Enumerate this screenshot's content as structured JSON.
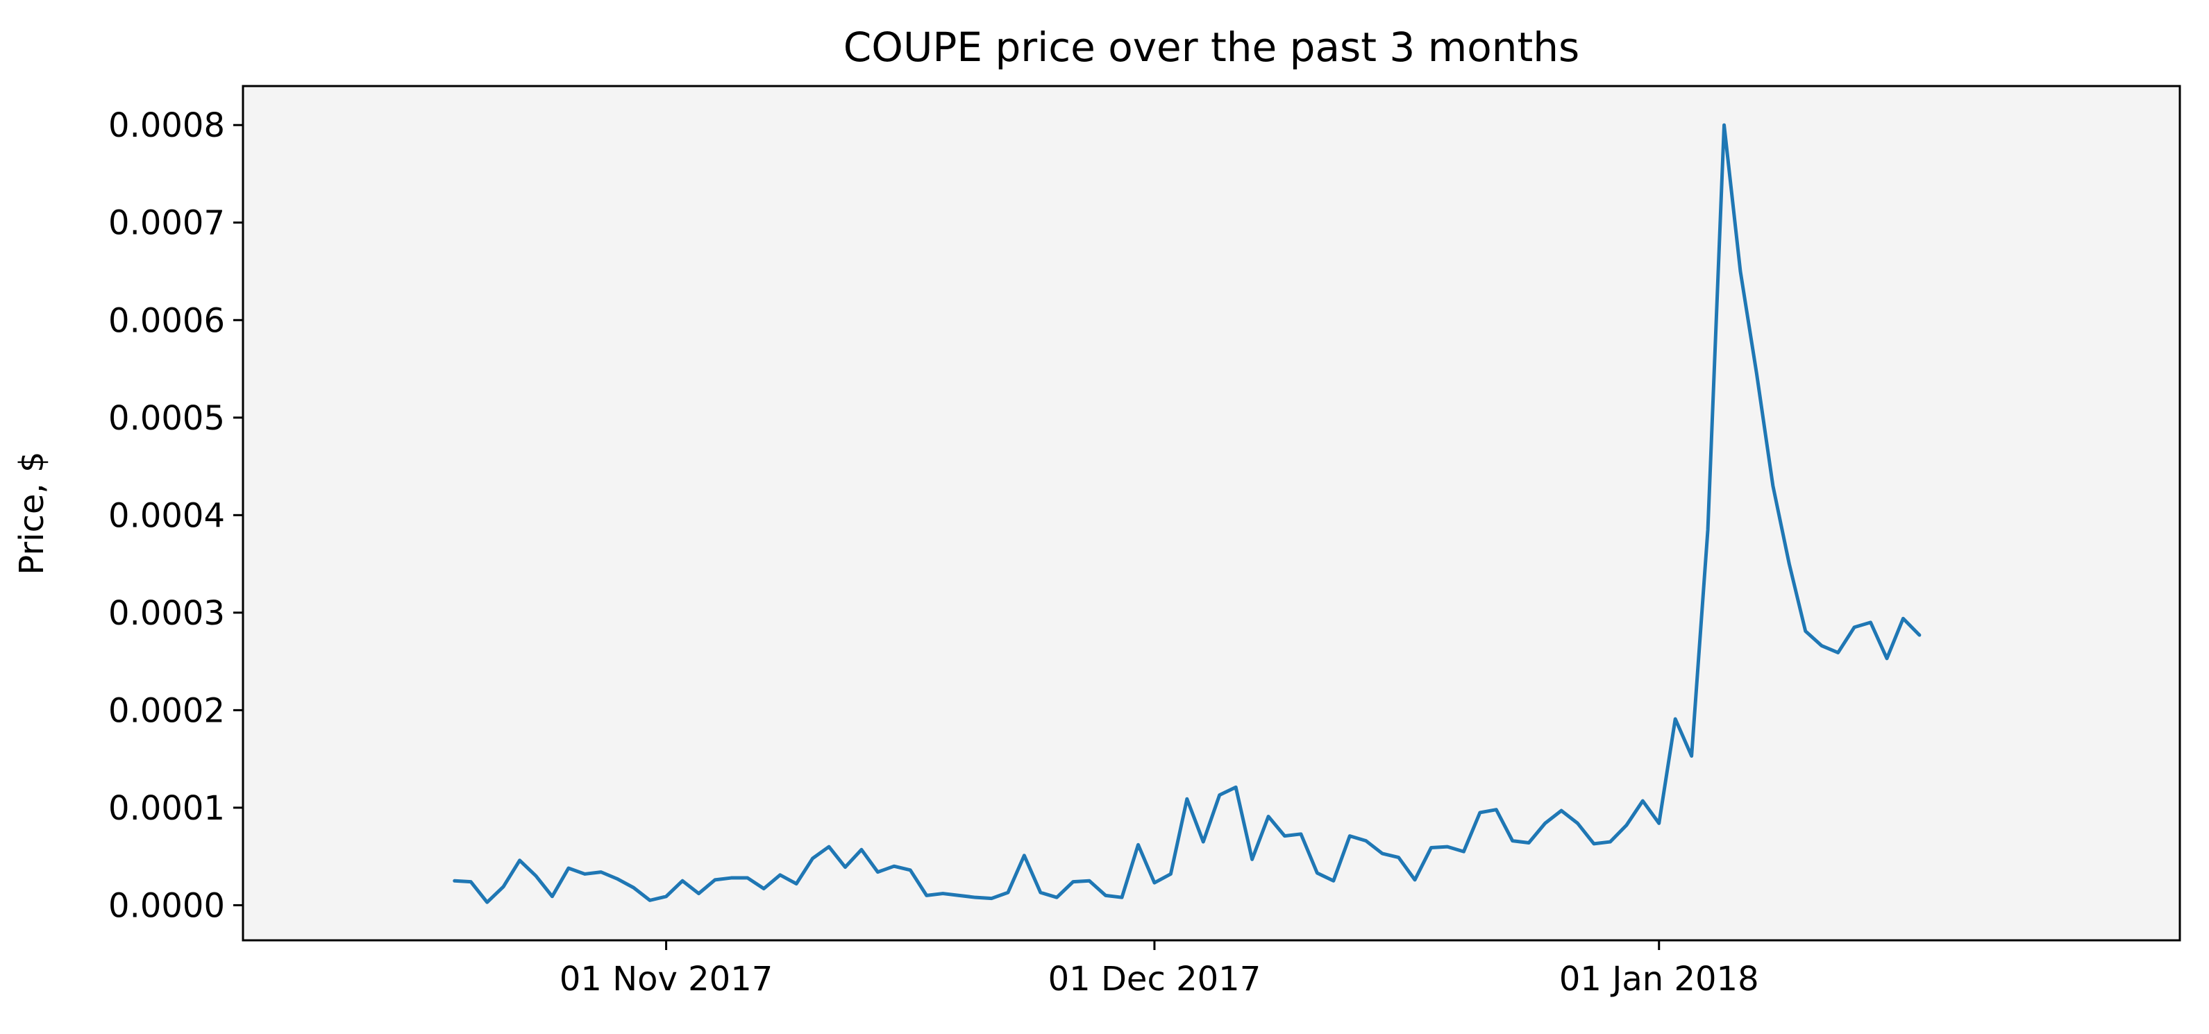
{
  "chart_data": {
    "type": "line",
    "title": "COUPE price over the past 3 months",
    "xlabel": "",
    "ylabel": "Price, $",
    "x_start_date": "2017-10-19",
    "x_step": "1 day",
    "x_ticks": [
      {
        "date": "2017-11-01",
        "label": "01 Nov 2017"
      },
      {
        "date": "2017-12-01",
        "label": "01 Dec 2017"
      },
      {
        "date": "2018-01-01",
        "label": "01 Jan 2018"
      }
    ],
    "y_ticks": [
      0,
      0.0001,
      0.0002,
      0.0003,
      0.0004,
      0.0005,
      0.0006,
      0.0007,
      0.0008
    ],
    "y_tick_labels": [
      "0.0000",
      "0.0001",
      "0.0002",
      "0.0003",
      "0.0004",
      "0.0005",
      "0.0006",
      "0.0007",
      "0.0008"
    ],
    "xlim": [
      "2017-10-06",
      "2018-02-02"
    ],
    "ylim": [
      -3.6e-05,
      0.00084
    ],
    "grid": false,
    "background_color": "#f4f4f4",
    "line_color": "#1f77b4",
    "series": [
      {
        "values": [
          2.5e-05,
          2.4e-05,
          3e-06,
          1.9e-05,
          4.6e-05,
          3e-05,
          9e-06,
          3.8e-05,
          3.2e-05,
          3.4e-05,
          2.7e-05,
          1.8e-05,
          5e-06,
          9e-06,
          2.5e-05,
          1.2e-05,
          2.6e-05,
          2.8e-05,
          2.8e-05,
          1.7e-05,
          3.1e-05,
          2.2e-05,
          4.8e-05,
          6e-05,
          3.9e-05,
          5.7e-05,
          3.4e-05,
          4e-05,
          3.6e-05,
          1e-05,
          1.2e-05,
          1e-05,
          8e-06,
          7e-06,
          1.3e-05,
          5.1e-05,
          1.3e-05,
          8e-06,
          2.4e-05,
          2.5e-05,
          1e-05,
          8e-06,
          6.2e-05,
          2.3e-05,
          3.2e-05,
          0.000109,
          6.5e-05,
          0.000113,
          0.000121,
          4.7e-05,
          9.1e-05,
          7.1e-05,
          7.3e-05,
          3.3e-05,
          2.5e-05,
          7.1e-05,
          6.6e-05,
          5.3e-05,
          4.9e-05,
          2.6e-05,
          5.9e-05,
          6e-05,
          5.5e-05,
          9.5e-05,
          9.8e-05,
          6.6e-05,
          6.4e-05,
          8.4e-05,
          9.7e-05,
          8.4e-05,
          6.3e-05,
          6.5e-05,
          8.2e-05,
          0.000107,
          8.4e-05,
          0.000191,
          0.000153,
          0.000385,
          0.0008,
          0.00065,
          0.000545,
          0.00043,
          0.00035,
          0.000281,
          0.000266,
          0.000259,
          0.000285,
          0.00029,
          0.000253,
          0.000294,
          0.000277
        ]
      }
    ]
  }
}
